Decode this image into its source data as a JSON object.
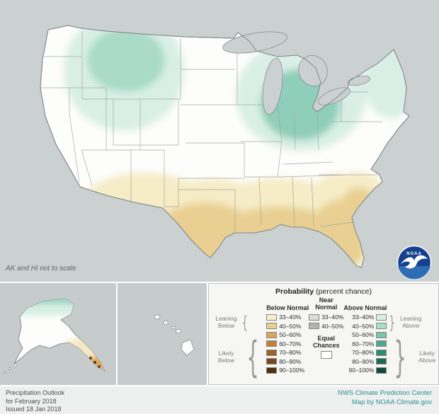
{
  "map": {
    "note": "AK and HI not to scale"
  },
  "logo": {
    "label": "NOAA"
  },
  "legend": {
    "title": "Probability",
    "title_suffix": " (percent chance)",
    "below": {
      "header": "Below Normal",
      "leaning_label": "Leaning Below",
      "likely_label": "Likely Below",
      "rows": [
        {
          "label": "33–40%",
          "color": "#f8edcb"
        },
        {
          "label": "40–50%",
          "color": "#e9cf90"
        },
        {
          "label": "50–60%",
          "color": "#d9a75a"
        },
        {
          "label": "60–70%",
          "color": "#c28136"
        },
        {
          "label": "70–80%",
          "color": "#9d6428"
        },
        {
          "label": "80–90%",
          "color": "#7a4a1c"
        },
        {
          "label": "90–100%",
          "color": "#502f0e"
        }
      ]
    },
    "near": {
      "header": "Near Normal",
      "equal_label": "Equal Chances",
      "equal_color": "#ffffff",
      "rows": [
        {
          "label": "33–40%",
          "color": "#dcdcdc"
        },
        {
          "label": "40–50%",
          "color": "#b3b3b3"
        }
      ]
    },
    "above": {
      "header": "Above Normal",
      "leaning_label": "Leaning Above",
      "likely_label": "Likely Above",
      "rows": [
        {
          "label": "33–40%",
          "color": "#d9efe6"
        },
        {
          "label": "40–50%",
          "color": "#abdcc9"
        },
        {
          "label": "50–60%",
          "color": "#7cc4ad"
        },
        {
          "label": "60–70%",
          "color": "#4fa88e"
        },
        {
          "label": "70–80%",
          "color": "#318a74"
        },
        {
          "label": "80–90%",
          "color": "#1c6b57"
        },
        {
          "label": "90–100%",
          "color": "#0d4a3b"
        }
      ]
    }
  },
  "footer": {
    "left_lines": [
      "Precipitation Outlook",
      "for February 2018",
      "Issued 18 Jan 2018"
    ],
    "right_lines": [
      "NWS Climate Prediction Center",
      "Map by NOAA Climate.gov"
    ]
  }
}
